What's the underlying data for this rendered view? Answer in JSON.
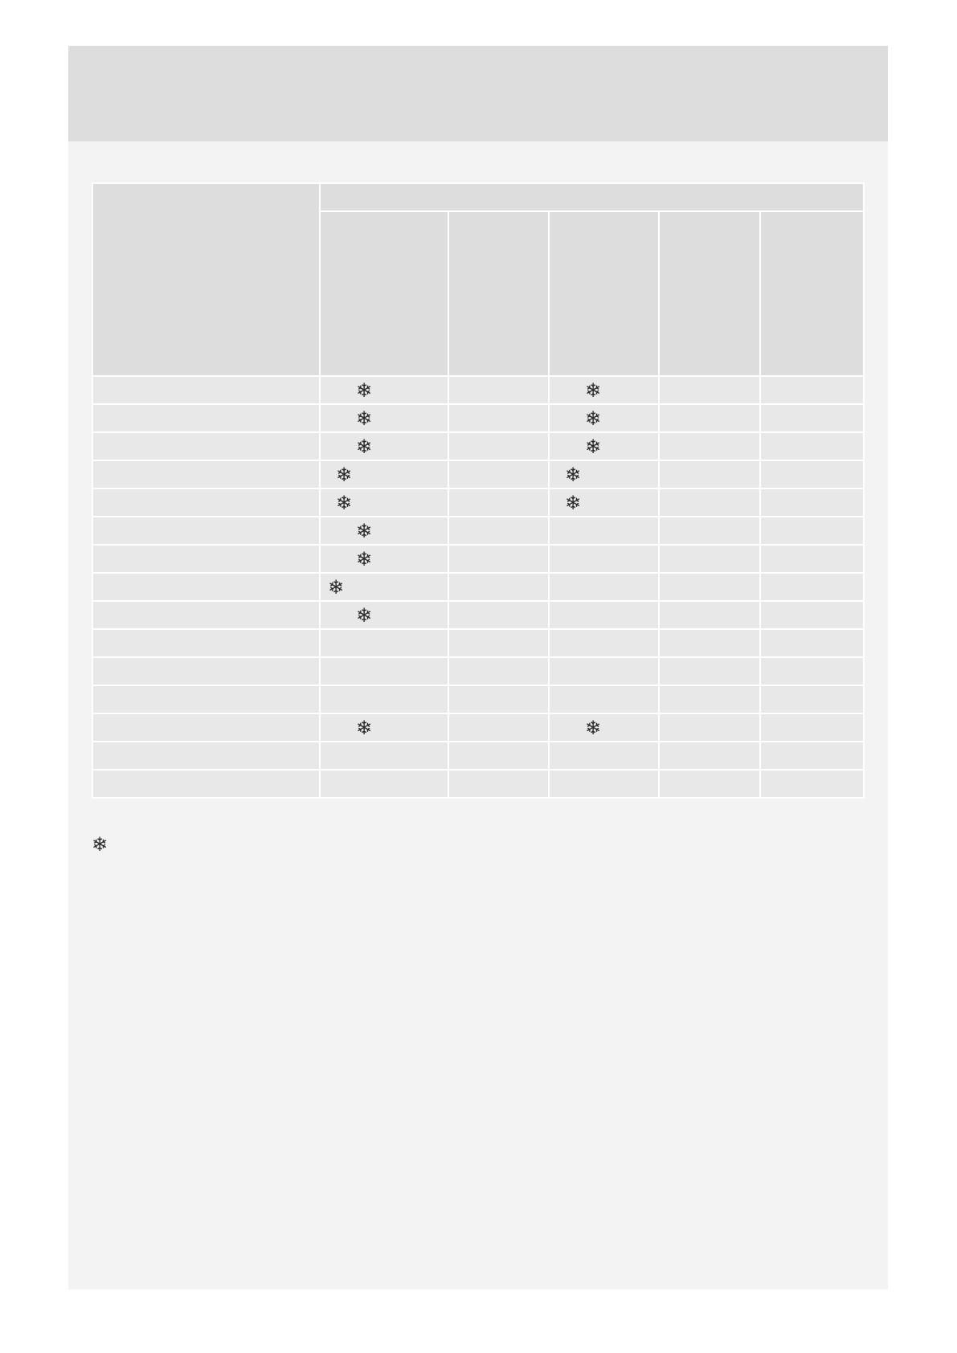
{
  "colors": {
    "page": "#f3f3f3",
    "header_band": "#dddddd",
    "header_cell": "#dddddd",
    "body_cell": "#e8e8e8",
    "icon": "#2a2a2a"
  },
  "table": {
    "columns": 5,
    "rows": [
      {
        "c1": "snowflake-icon",
        "c1_pos": "center",
        "c3": "snowflake-icon",
        "c3_pos": "center"
      },
      {
        "c1": "snowflake-icon",
        "c1_pos": "center",
        "c3": "snowflake-icon",
        "c3_pos": "center"
      },
      {
        "c1": "snowflake-icon",
        "c1_pos": "center",
        "c3": "snowflake-icon",
        "c3_pos": "center"
      },
      {
        "c1": "snowflake-icon",
        "c1_pos": "left",
        "c3": "snowflake-icon",
        "c3_pos": "left"
      },
      {
        "c1": "snowflake-icon",
        "c1_pos": "left",
        "c3": "snowflake-icon",
        "c3_pos": "left"
      },
      {
        "c1": "snowflake-icon",
        "c1_pos": "center"
      },
      {
        "c1": "snowflake-icon",
        "c1_pos": "center"
      },
      {
        "c1": "snowflake-icon",
        "c1_pos": "far-left"
      },
      {
        "c1": "snowflake-icon",
        "c1_pos": "center"
      },
      {},
      {},
      {},
      {
        "c1": "snowflake-icon",
        "c1_pos": "center",
        "c3": "snowflake-icon",
        "c3_pos": "center"
      },
      {},
      {}
    ]
  },
  "footnote": {
    "icon": "snowflake-icon"
  }
}
